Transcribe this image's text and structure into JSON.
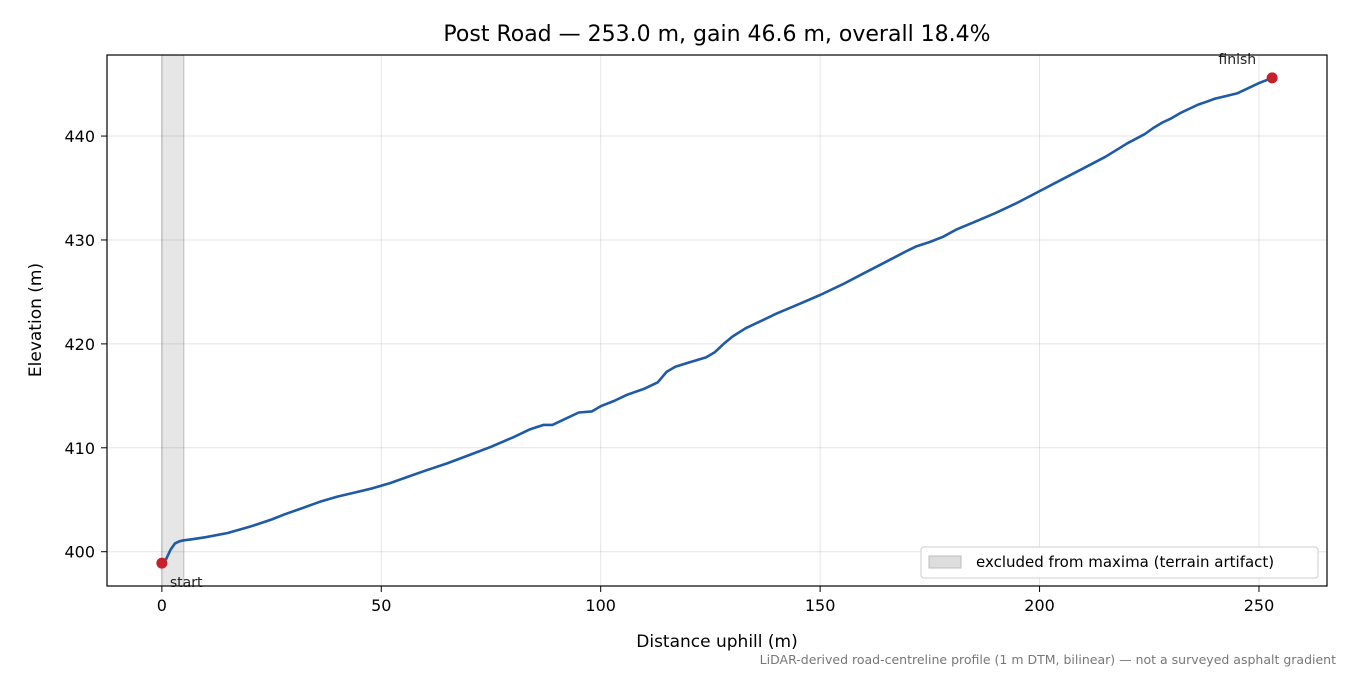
{
  "chart_data": {
    "type": "line",
    "title": "Post Road — 253.0 m, gain 46.6 m, overall 18.4%",
    "xlabel": "Distance uphill (m)",
    "ylabel": "Elevation (m)",
    "xlim": [
      -12.5,
      265.5
    ],
    "ylim": [
      396.7,
      447.8
    ],
    "xticks": [
      0,
      50,
      100,
      150,
      200,
      250
    ],
    "yticks": [
      400,
      410,
      420,
      430,
      440
    ],
    "grid": true,
    "line_color": "#1f5aa6",
    "marker_color": "#c8202a",
    "excluded_band": {
      "x": [
        0,
        5
      ],
      "color": "#dddddd",
      "label": "excluded from maxima (terrain artifact)"
    },
    "legend_position": "lower-right",
    "series": [
      {
        "x": [
          0,
          1,
          2,
          3,
          4,
          5,
          7,
          10,
          15,
          20,
          25,
          28,
          32,
          36,
          40,
          44,
          48,
          52,
          56,
          60,
          65,
          70,
          75,
          80,
          84,
          87,
          89,
          92,
          95,
          98,
          100,
          103,
          106,
          110,
          113,
          115,
          117,
          120,
          124,
          126,
          128,
          130,
          133,
          136,
          140,
          145,
          150,
          155,
          160,
          165,
          170,
          172,
          175,
          178,
          181,
          185,
          190,
          195,
          200,
          205,
          210,
          215,
          220,
          224,
          226,
          228,
          230,
          232,
          234,
          236,
          238,
          240,
          243,
          245,
          247,
          250,
          253
        ],
        "y": [
          398.9,
          399.3,
          400.2,
          400.8,
          401.0,
          401.1,
          401.2,
          401.4,
          401.8,
          402.4,
          403.1,
          403.6,
          404.2,
          404.8,
          405.3,
          405.7,
          406.1,
          406.6,
          407.2,
          407.8,
          408.5,
          409.3,
          410.1,
          411.0,
          411.8,
          412.2,
          412.2,
          412.8,
          413.4,
          413.5,
          414.0,
          414.5,
          415.1,
          415.7,
          416.3,
          417.3,
          417.8,
          418.2,
          418.7,
          419.2,
          420.0,
          420.7,
          421.5,
          422.1,
          422.9,
          423.8,
          424.7,
          425.7,
          426.8,
          427.9,
          429.0,
          429.4,
          429.8,
          430.3,
          431.0,
          431.7,
          432.6,
          433.6,
          434.7,
          435.8,
          436.9,
          438.0,
          439.3,
          440.2,
          440.8,
          441.3,
          441.7,
          442.2,
          442.6,
          443.0,
          443.3,
          443.6,
          443.9,
          444.1,
          444.5,
          445.1,
          445.6
        ]
      }
    ],
    "annotations": [
      {
        "label": "start",
        "x": 0,
        "y": 398.9
      },
      {
        "label": "finish",
        "x": 253,
        "y": 445.6
      }
    ]
  },
  "footnote": "LiDAR-derived road-centreline profile (1 m DTM, bilinear) — not a surveyed asphalt gradient"
}
